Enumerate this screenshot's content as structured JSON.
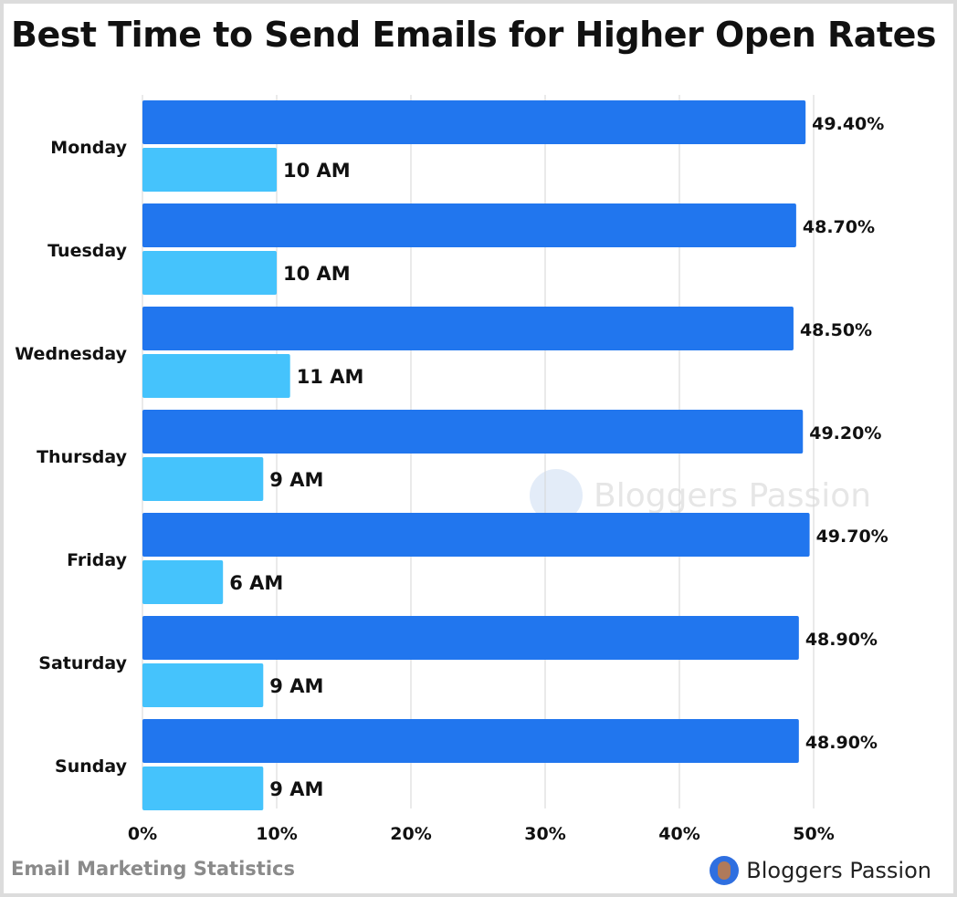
{
  "title": "Best Time to Send Emails for Higher Open Rates",
  "footer": {
    "source": "Email Marketing Statistics",
    "brand": "Bloggers Passion"
  },
  "watermark": "Bloggers Passion",
  "colors": {
    "open_rate": "#2176ee",
    "send_time": "#45c3fc"
  },
  "chart_data": {
    "type": "bar",
    "orientation": "horizontal",
    "categories": [
      "Monday",
      "Tuesday",
      "Wednesday",
      "Thursday",
      "Friday",
      "Saturday",
      "Sunday"
    ],
    "series": [
      {
        "values": [
          49.4,
          48.7,
          48.5,
          49.2,
          49.7,
          48.9,
          48.9
        ],
        "labels": [
          "49.40%",
          "48.70%",
          "48.50%",
          "49.20%",
          "49.70%",
          "48.90%",
          "48.90%"
        ]
      },
      {
        "values": [
          10,
          10,
          11,
          9,
          6,
          9,
          9
        ],
        "labels": [
          "10 AM",
          "10 AM",
          "11 AM",
          "9 AM",
          "6 AM",
          "9 AM",
          "9 AM"
        ]
      }
    ],
    "xlim": [
      0,
      50
    ],
    "xticks": [
      "0%",
      "10%",
      "20%",
      "30%",
      "40%",
      "50%"
    ],
    "grid": true
  }
}
